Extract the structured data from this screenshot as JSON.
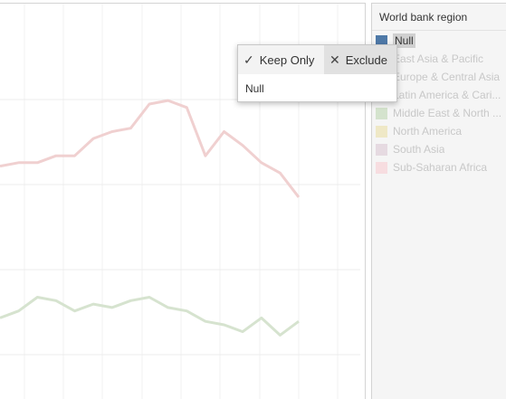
{
  "legend": {
    "title": "World bank region",
    "items": [
      {
        "label": "Null",
        "color": "#4e79a7",
        "selected": true
      },
      {
        "label": "East Asia & Pacific",
        "color": "#dfe7f1",
        "selected": false
      },
      {
        "label": "Europe & Central Asia",
        "color": "#fde6cf",
        "selected": false
      },
      {
        "label": "Latin America & Cari...",
        "color": "#f6d9d9",
        "selected": false
      },
      {
        "label": "Middle East & North ...",
        "color": "#d4e3cd",
        "selected": false
      },
      {
        "label": "North America",
        "color": "#efe8c6",
        "selected": false
      },
      {
        "label": "South Asia",
        "color": "#e6dae1",
        "selected": false
      },
      {
        "label": "Sub-Saharan Africa",
        "color": "#f7dde0",
        "selected": false
      }
    ]
  },
  "popup": {
    "keep_icon": "check-icon",
    "keep_glyph": "✓",
    "keep_label": "Keep Only",
    "exclude_icon": "x-icon",
    "exclude_glyph": "✕",
    "exclude_label": "Exclude",
    "value": "Null"
  },
  "chart_data": {
    "type": "line",
    "title": "",
    "xlabel": "",
    "ylabel": "",
    "grid": true,
    "series": [
      {
        "color": "#f0d0d0",
        "values": [
          0.62,
          0.63,
          0.63,
          0.65,
          0.65,
          0.7,
          0.72,
          0.73,
          0.8,
          0.81,
          0.79,
          0.65,
          0.72,
          0.68,
          0.63,
          0.6,
          0.53
        ]
      },
      {
        "color": "#d6e3cf",
        "values": [
          0.18,
          0.2,
          0.24,
          0.23,
          0.2,
          0.22,
          0.21,
          0.23,
          0.24,
          0.21,
          0.2,
          0.17,
          0.16,
          0.14,
          0.18,
          0.13,
          0.17
        ]
      }
    ]
  }
}
